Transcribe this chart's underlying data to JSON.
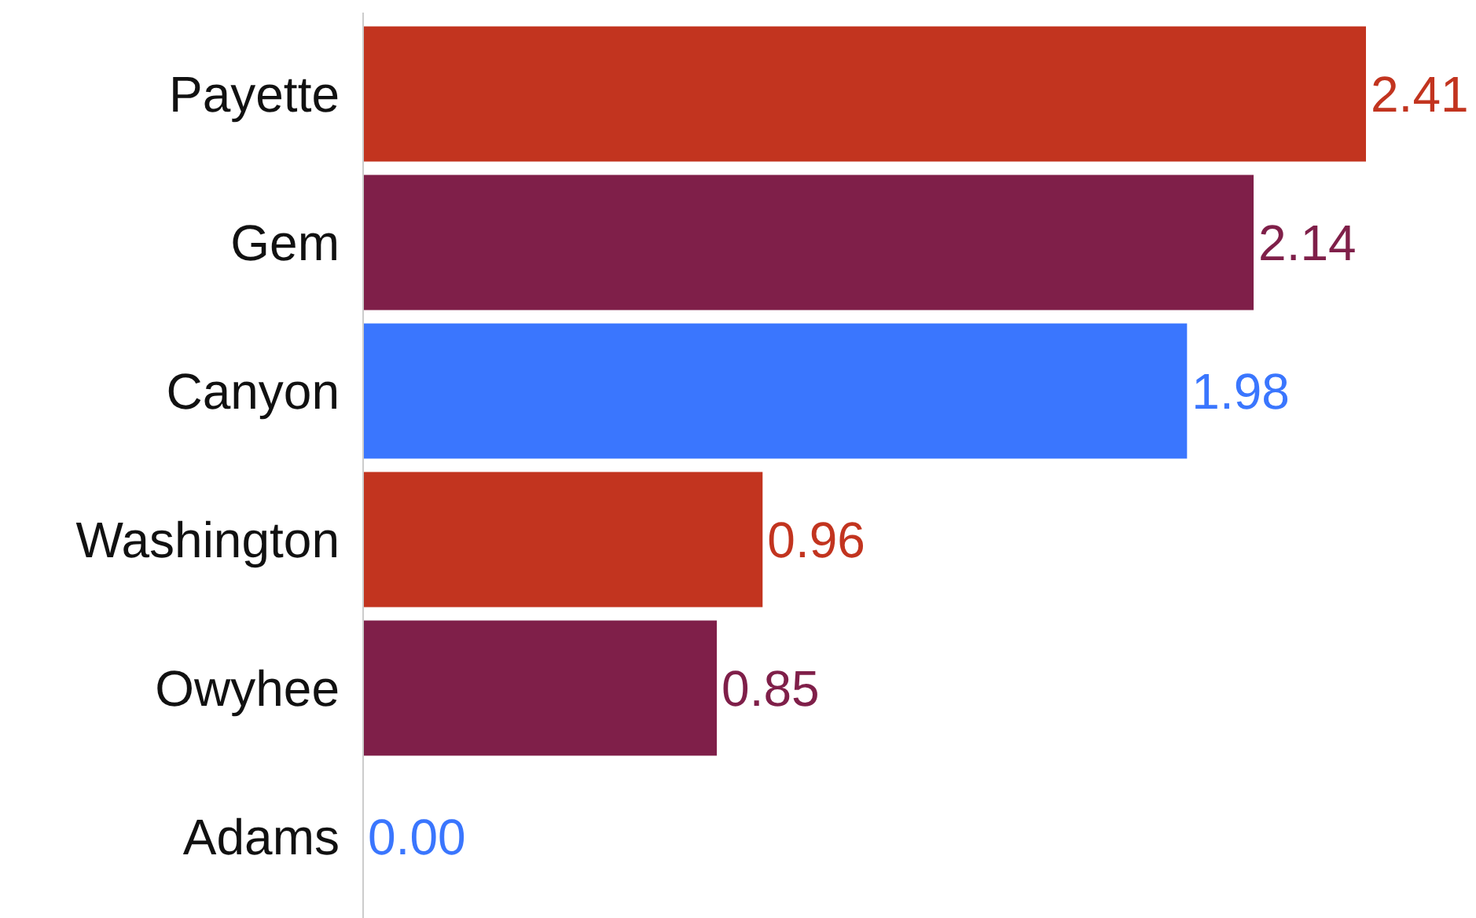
{
  "chart_data": {
    "type": "bar",
    "orientation": "horizontal",
    "categories": [
      "Payette",
      "Gem",
      "Canyon",
      "Washington",
      "Owyhee",
      "Adams"
    ],
    "values": [
      2.41,
      2.14,
      1.98,
      0.96,
      0.85,
      0.0
    ],
    "colors": [
      "#c2341f",
      "#7f1f49",
      "#3a76fe",
      "#c2341f",
      "#7f1f49",
      "#3a76fe"
    ],
    "value_labels": [
      "2.41",
      "2.14",
      "1.98",
      "0.96",
      "0.85",
      "0.00"
    ]
  }
}
